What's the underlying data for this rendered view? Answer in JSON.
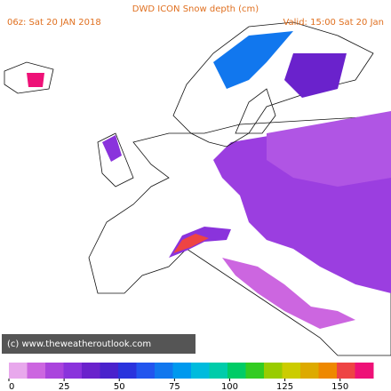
{
  "title": "DWD ICON Snow depth (cm)",
  "run_label": "06z: Sat 20 JAN 2018",
  "valid_label": "Valid: 15:00 Sat 20 Jan",
  "credit": "(c) www.theweatheroutlook.com",
  "colorbar": {
    "lim": [
      0,
      165
    ],
    "ticks": [
      0,
      25,
      50,
      75,
      100,
      125,
      150
    ],
    "colors": [
      "#e8a8ec",
      "#cc66e0",
      "#aa44dd",
      "#8a33dc",
      "#6a22cc",
      "#4a22cc",
      "#2a33dd",
      "#2255ee",
      "#1177ee",
      "#0099ee",
      "#00bbdd",
      "#00ccaa",
      "#00cc66",
      "#33cc22",
      "#99cc00",
      "#cccc00",
      "#ddaa00",
      "#ee8800",
      "#ee4444",
      "#ee1177"
    ]
  }
}
